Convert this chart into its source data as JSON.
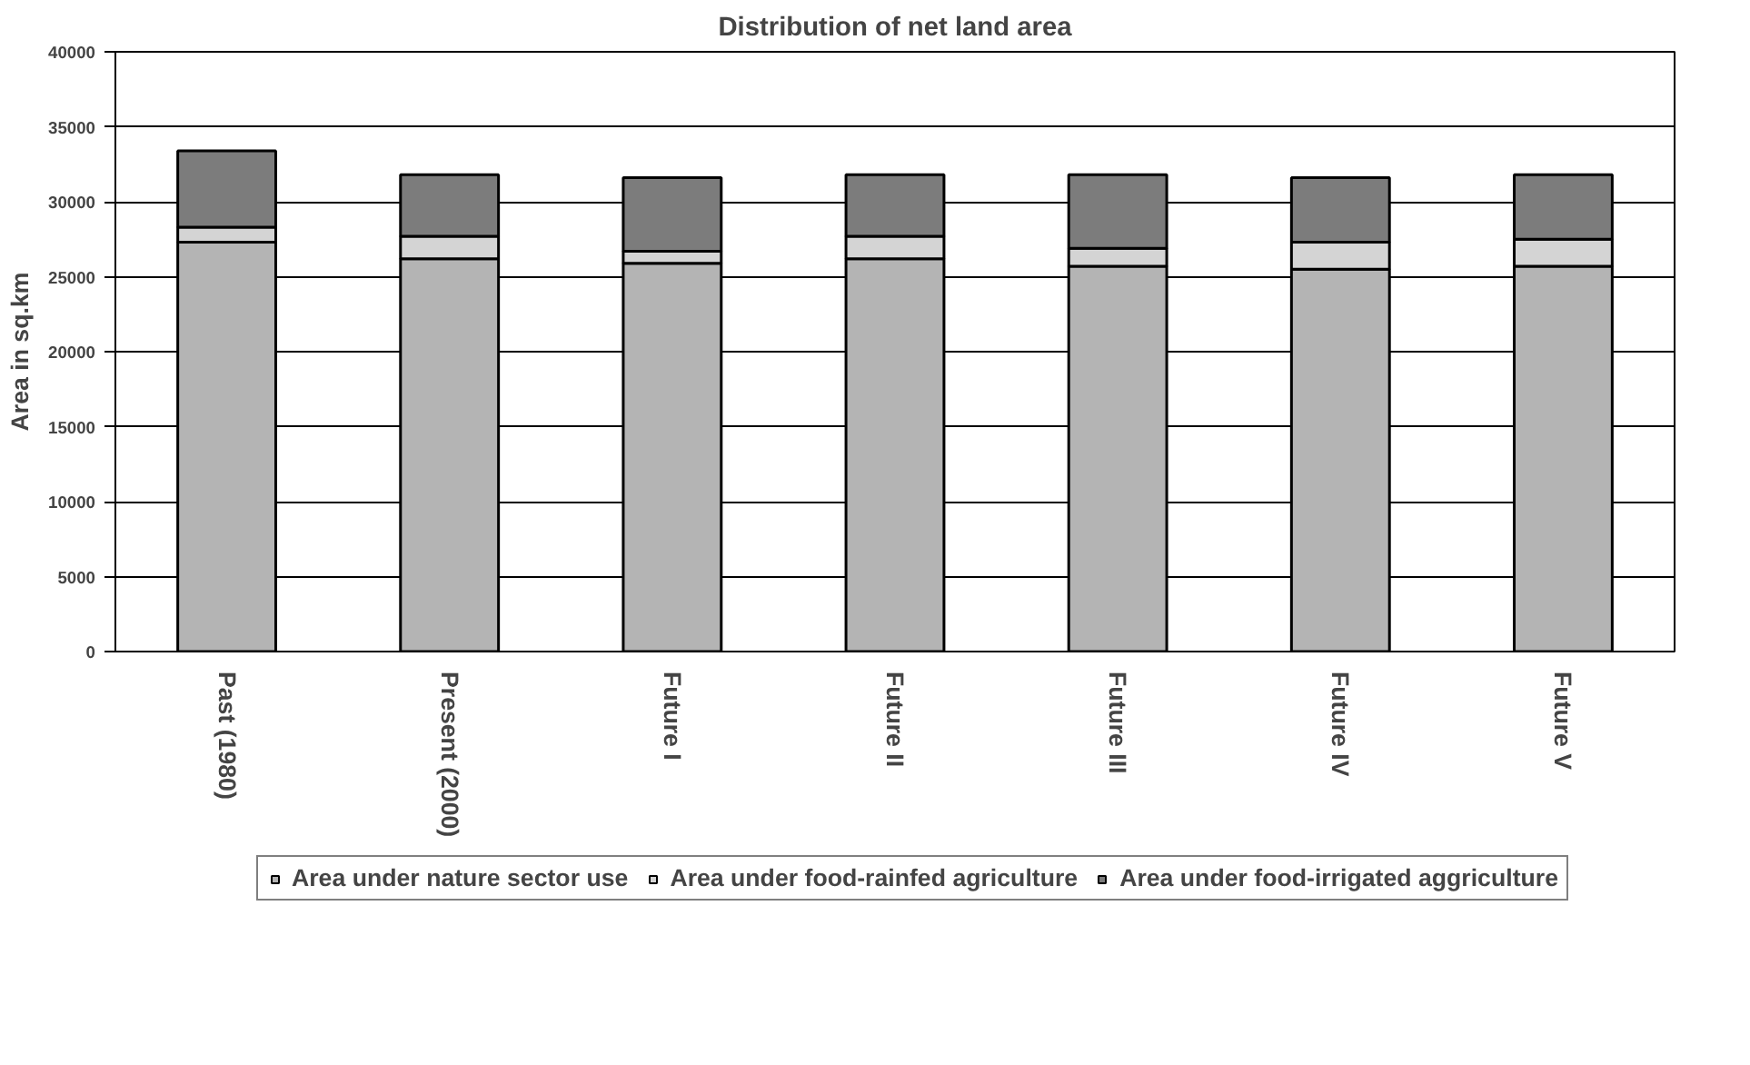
{
  "chart_data": {
    "type": "bar",
    "stacked": true,
    "title": "Distribution of net land area",
    "ylabel": "Area in sq.km",
    "categories": [
      "Past (1980)",
      "Present (2000)",
      "Future I",
      "Future II",
      "Future III",
      "Future IV",
      "Future V"
    ],
    "series": [
      {
        "name": "Area under nature sector use",
        "color": "#b4b4b4",
        "values": [
          27300,
          26200,
          25900,
          26200,
          25700,
          25500,
          25700
        ]
      },
      {
        "name": "Area under food-rainfed agriculture",
        "color": "#d4d4d4",
        "values": [
          1000,
          1500,
          800,
          1500,
          1200,
          1800,
          1800
        ]
      },
      {
        "name": "Area under food-irrigated aggriculture",
        "color": "#7c7c7c",
        "values": [
          5100,
          4100,
          4900,
          4100,
          4900,
          4300,
          4300
        ]
      }
    ],
    "ylim": [
      0,
      40000
    ],
    "yticks": [
      0,
      5000,
      10000,
      15000,
      20000,
      25000,
      30000,
      35000,
      40000
    ],
    "grid": "y",
    "legend": "bottom"
  }
}
